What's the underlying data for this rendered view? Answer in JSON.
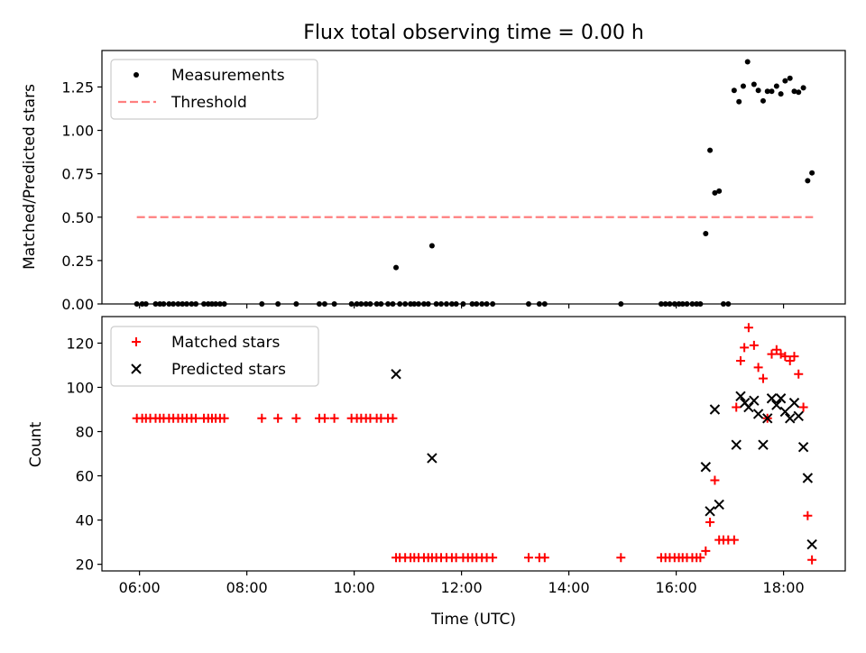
{
  "title": "Flux total observing time = 0.00 h",
  "chart_data": [
    {
      "type": "scatter",
      "ylabel": "Matched/Predicted stars",
      "xlim": [
        5.3,
        19.15
      ],
      "ylim": [
        0,
        1.46
      ],
      "yticks": [
        0,
        0.25,
        0.5,
        0.75,
        1.0,
        1.25
      ],
      "ytick_labels": [
        "0.00",
        "0.25",
        "0.50",
        "0.75",
        "1.00",
        "1.25"
      ],
      "legend_position": "top-left",
      "series": [
        {
          "name": "Measurements",
          "marker": "dot",
          "color": "#000000",
          "points": [
            [
              5.95,
              0
            ],
            [
              6.05,
              0
            ],
            [
              6.12,
              0
            ],
            [
              6.3,
              0
            ],
            [
              6.38,
              0
            ],
            [
              6.45,
              0
            ],
            [
              6.55,
              0
            ],
            [
              6.63,
              0
            ],
            [
              6.72,
              0
            ],
            [
              6.8,
              0
            ],
            [
              6.88,
              0
            ],
            [
              6.97,
              0
            ],
            [
              7.05,
              0
            ],
            [
              7.2,
              0
            ],
            [
              7.28,
              0
            ],
            [
              7.35,
              0
            ],
            [
              7.42,
              0
            ],
            [
              7.5,
              0
            ],
            [
              7.58,
              0
            ],
            [
              8.28,
              0
            ],
            [
              8.58,
              0
            ],
            [
              8.92,
              0
            ],
            [
              9.35,
              0
            ],
            [
              9.45,
              0
            ],
            [
              9.63,
              0
            ],
            [
              9.95,
              0
            ],
            [
              10.05,
              0
            ],
            [
              10.13,
              0
            ],
            [
              10.22,
              0
            ],
            [
              10.3,
              0
            ],
            [
              10.42,
              0
            ],
            [
              10.5,
              0
            ],
            [
              10.63,
              0
            ],
            [
              10.72,
              0
            ],
            [
              10.78,
              0.21
            ],
            [
              10.85,
              0
            ],
            [
              10.95,
              0
            ],
            [
              11.05,
              0
            ],
            [
              11.12,
              0
            ],
            [
              11.2,
              0
            ],
            [
              11.3,
              0
            ],
            [
              11.38,
              0
            ],
            [
              11.45,
              0.335
            ],
            [
              11.53,
              0
            ],
            [
              11.62,
              0
            ],
            [
              11.72,
              0
            ],
            [
              11.82,
              0
            ],
            [
              11.9,
              0
            ],
            [
              12.03,
              0
            ],
            [
              12.2,
              0
            ],
            [
              12.28,
              0
            ],
            [
              12.38,
              0
            ],
            [
              12.47,
              0
            ],
            [
              12.58,
              0
            ],
            [
              13.25,
              0
            ],
            [
              13.45,
              0
            ],
            [
              13.55,
              0
            ],
            [
              14.97,
              0
            ],
            [
              15.72,
              0
            ],
            [
              15.8,
              0
            ],
            [
              15.88,
              0
            ],
            [
              15.97,
              0
            ],
            [
              16.05,
              0
            ],
            [
              16.12,
              0
            ],
            [
              16.2,
              0
            ],
            [
              16.3,
              0
            ],
            [
              16.38,
              0
            ],
            [
              16.45,
              0
            ],
            [
              16.55,
              0.405
            ],
            [
              16.63,
              0.885
            ],
            [
              16.72,
              0.64
            ],
            [
              16.8,
              0.65
            ],
            [
              16.88,
              0
            ],
            [
              16.97,
              0
            ],
            [
              17.08,
              1.23
            ],
            [
              17.17,
              1.165
            ],
            [
              17.25,
              1.255
            ],
            [
              17.33,
              1.395
            ],
            [
              17.45,
              1.265
            ],
            [
              17.53,
              1.23
            ],
            [
              17.62,
              1.17
            ],
            [
              17.7,
              1.225
            ],
            [
              17.78,
              1.225
            ],
            [
              17.87,
              1.255
            ],
            [
              17.95,
              1.21
            ],
            [
              18.03,
              1.285
            ],
            [
              18.12,
              1.3
            ],
            [
              18.2,
              1.225
            ],
            [
              18.28,
              1.22
            ],
            [
              18.37,
              1.245
            ],
            [
              18.45,
              0.71
            ],
            [
              18.53,
              0.755
            ]
          ]
        },
        {
          "name": "Threshold",
          "style": "dashed",
          "color": "#ff7f7f",
          "points": [
            [
              5.95,
              0.5
            ],
            [
              18.55,
              0.5
            ]
          ]
        }
      ]
    },
    {
      "type": "scatter",
      "xlabel": "Time (UTC)",
      "ylabel": "Count",
      "xlim": [
        5.3,
        19.15
      ],
      "ylim": [
        17,
        132
      ],
      "xticks": [
        6,
        8,
        10,
        12,
        14,
        16,
        18
      ],
      "xtick_labels": [
        "06:00",
        "08:00",
        "10:00",
        "12:00",
        "14:00",
        "16:00",
        "18:00"
      ],
      "yticks": [
        20,
        40,
        60,
        80,
        100,
        120
      ],
      "ytick_labels": [
        "20",
        "40",
        "60",
        "80",
        "100",
        "120"
      ],
      "legend_position": "top-left",
      "series": [
        {
          "name": "Matched stars",
          "marker": "plus",
          "color": "#ff0000",
          "points": [
            [
              5.95,
              86
            ],
            [
              6.05,
              86
            ],
            [
              6.12,
              86
            ],
            [
              6.2,
              86
            ],
            [
              6.3,
              86
            ],
            [
              6.38,
              86
            ],
            [
              6.45,
              86
            ],
            [
              6.55,
              86
            ],
            [
              6.63,
              86
            ],
            [
              6.72,
              86
            ],
            [
              6.8,
              86
            ],
            [
              6.88,
              86
            ],
            [
              6.97,
              86
            ],
            [
              7.05,
              86
            ],
            [
              7.2,
              86
            ],
            [
              7.28,
              86
            ],
            [
              7.35,
              86
            ],
            [
              7.42,
              86
            ],
            [
              7.5,
              86
            ],
            [
              7.58,
              86
            ],
            [
              8.28,
              86
            ],
            [
              8.58,
              86
            ],
            [
              8.92,
              86
            ],
            [
              9.35,
              86
            ],
            [
              9.45,
              86
            ],
            [
              9.63,
              86
            ],
            [
              9.95,
              86
            ],
            [
              10.05,
              86
            ],
            [
              10.13,
              86
            ],
            [
              10.22,
              86
            ],
            [
              10.3,
              86
            ],
            [
              10.42,
              86
            ],
            [
              10.5,
              86
            ],
            [
              10.63,
              86
            ],
            [
              10.72,
              86
            ],
            [
              10.78,
              23
            ],
            [
              10.85,
              23
            ],
            [
              10.95,
              23
            ],
            [
              11.05,
              23
            ],
            [
              11.12,
              23
            ],
            [
              11.2,
              23
            ],
            [
              11.3,
              23
            ],
            [
              11.38,
              23
            ],
            [
              11.45,
              23
            ],
            [
              11.53,
              23
            ],
            [
              11.62,
              23
            ],
            [
              11.72,
              23
            ],
            [
              11.82,
              23
            ],
            [
              11.9,
              23
            ],
            [
              12.03,
              23
            ],
            [
              12.12,
              23
            ],
            [
              12.2,
              23
            ],
            [
              12.28,
              23
            ],
            [
              12.38,
              23
            ],
            [
              12.47,
              23
            ],
            [
              12.58,
              23
            ],
            [
              13.25,
              23
            ],
            [
              13.45,
              23
            ],
            [
              13.55,
              23
            ],
            [
              14.97,
              23
            ],
            [
              15.72,
              23
            ],
            [
              15.8,
              23
            ],
            [
              15.88,
              23
            ],
            [
              15.97,
              23
            ],
            [
              16.05,
              23
            ],
            [
              16.12,
              23
            ],
            [
              16.2,
              23
            ],
            [
              16.3,
              23
            ],
            [
              16.38,
              23
            ],
            [
              16.45,
              23
            ],
            [
              16.55,
              26
            ],
            [
              16.63,
              39
            ],
            [
              16.72,
              58
            ],
            [
              16.8,
              31
            ],
            [
              16.88,
              31
            ],
            [
              16.97,
              31
            ],
            [
              17.08,
              31
            ],
            [
              17.12,
              91
            ],
            [
              17.2,
              112
            ],
            [
              17.27,
              118
            ],
            [
              17.35,
              127
            ],
            [
              17.45,
              119
            ],
            [
              17.53,
              109
            ],
            [
              17.62,
              104
            ],
            [
              17.7,
              86
            ],
            [
              17.78,
              115
            ],
            [
              17.87,
              117
            ],
            [
              17.95,
              115
            ],
            [
              18.03,
              114
            ],
            [
              18.12,
              112
            ],
            [
              18.2,
              114
            ],
            [
              18.28,
              106
            ],
            [
              18.37,
              91
            ],
            [
              18.45,
              42
            ],
            [
              18.53,
              22
            ]
          ]
        },
        {
          "name": "Predicted stars",
          "marker": "x",
          "color": "#000000",
          "points": [
            [
              10.78,
              106
            ],
            [
              11.45,
              68
            ],
            [
              16.55,
              64
            ],
            [
              16.63,
              44
            ],
            [
              16.72,
              90
            ],
            [
              16.8,
              47
            ],
            [
              17.12,
              74
            ],
            [
              17.2,
              96
            ],
            [
              17.28,
              93
            ],
            [
              17.35,
              91
            ],
            [
              17.45,
              94
            ],
            [
              17.53,
              88
            ],
            [
              17.62,
              74
            ],
            [
              17.7,
              86
            ],
            [
              17.78,
              95
            ],
            [
              17.87,
              92
            ],
            [
              17.95,
              95
            ],
            [
              18.03,
              89
            ],
            [
              18.12,
              86
            ],
            [
              18.2,
              93
            ],
            [
              18.28,
              87
            ],
            [
              18.37,
              73
            ],
            [
              18.45,
              59
            ],
            [
              18.53,
              29
            ]
          ]
        }
      ]
    }
  ]
}
